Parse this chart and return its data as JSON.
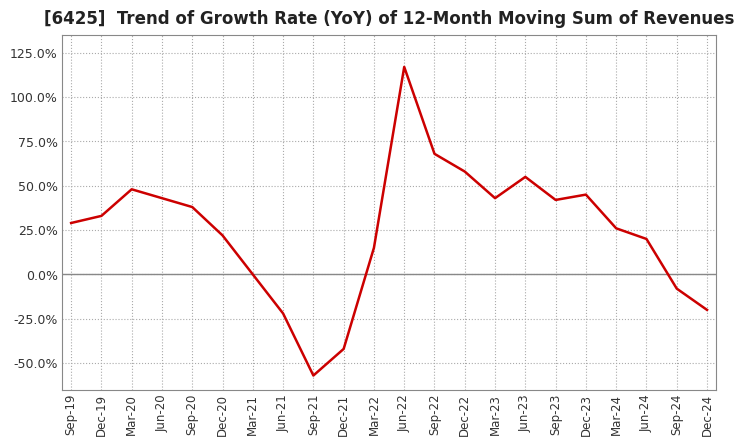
{
  "title": "[6425]  Trend of Growth Rate (YoY) of 12-Month Moving Sum of Revenues",
  "title_fontsize": 12,
  "line_color": "#cc0000",
  "background_color": "#ffffff",
  "grid_color": "#aaaaaa",
  "zero_line_color": "#888888",
  "x_labels": [
    "Sep-19",
    "Dec-19",
    "Mar-20",
    "Jun-20",
    "Sep-20",
    "Dec-20",
    "Mar-21",
    "Jun-21",
    "Sep-21",
    "Dec-21",
    "Mar-22",
    "Jun-22",
    "Sep-22",
    "Dec-22",
    "Mar-23",
    "Jun-23",
    "Sep-23",
    "Dec-23",
    "Mar-24",
    "Jun-24",
    "Sep-24",
    "Dec-24"
  ],
  "y_values": [
    29.0,
    33.0,
    48.0,
    43.0,
    38.0,
    22.0,
    0.0,
    -22.0,
    -57.0,
    -42.0,
    15.0,
    117.0,
    68.0,
    58.0,
    43.0,
    55.0,
    42.0,
    45.0,
    26.0,
    20.0,
    -8.0,
    -20.0
  ],
  "ylim": [
    -65,
    135
  ],
  "yticks": [
    -50,
    -25,
    0,
    25,
    50,
    75,
    100,
    125
  ],
  "ytick_labels": [
    "-50.0%",
    "-25.0%",
    "0.0%",
    "25.0%",
    "50.0%",
    "75.0%",
    "100.0%",
    "125.0%"
  ]
}
